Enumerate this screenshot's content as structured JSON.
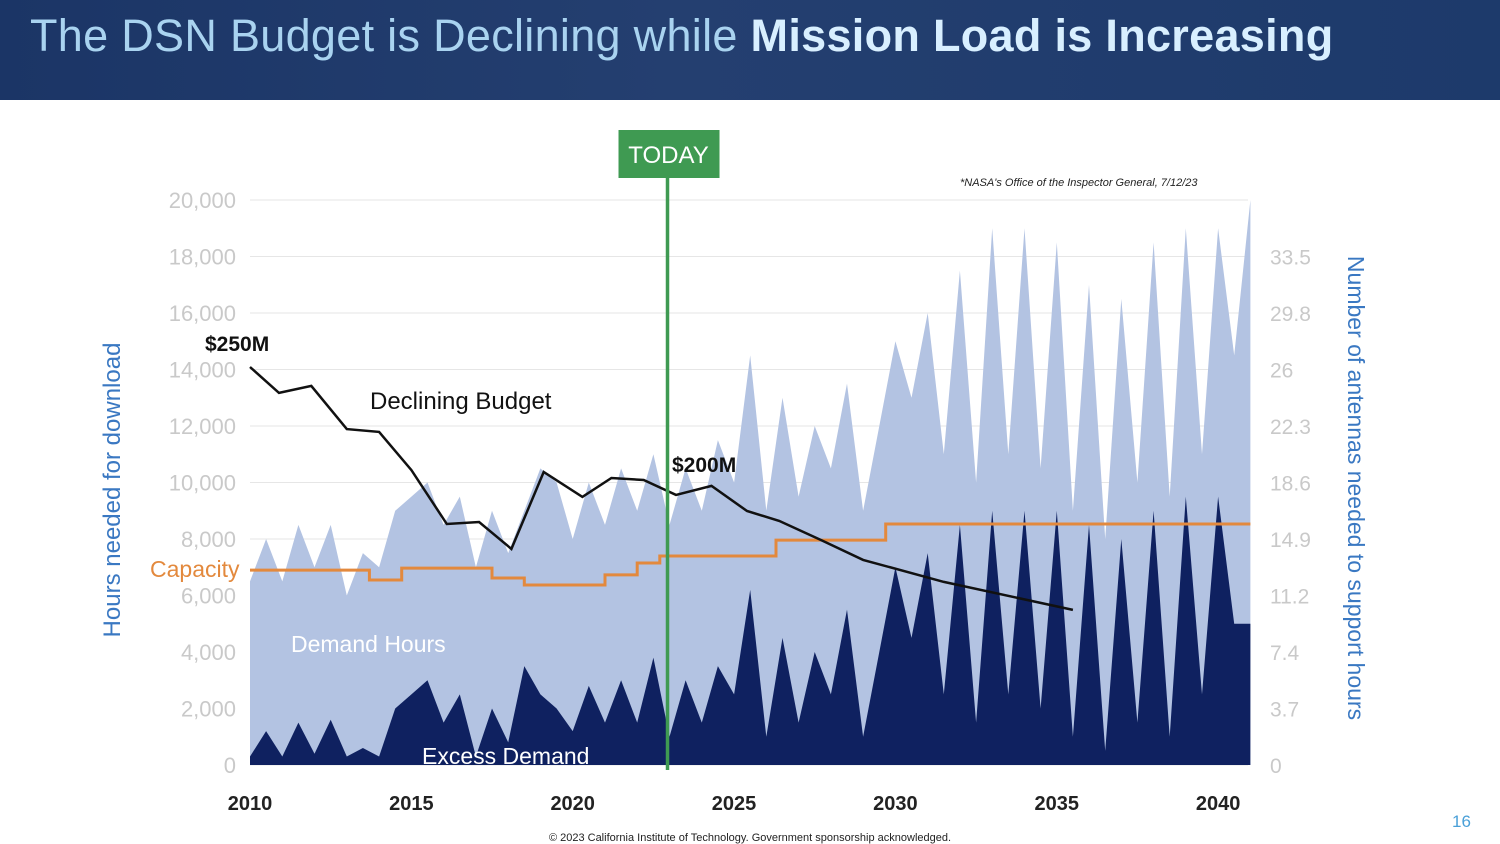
{
  "slide": {
    "title_regular": "The DSN Budget is Declining while ",
    "title_bold": "Mission Load is Increasing",
    "footnote": "*NASA's Office of the Inspector General, 7/12/23",
    "copyright": "© 2023 California Institute of Technology. Government sponsorship acknowledged.",
    "page_number": "16"
  },
  "chart_data": {
    "type": "area",
    "ylabel": "Hours needed for download",
    "y2label": "Number of antennas needed to support hours",
    "xlim": [
      2010,
      2041
    ],
    "ylim": [
      0,
      20000
    ],
    "x_ticks": [
      "2010",
      "2015",
      "2020",
      "2025",
      "2030",
      "2035",
      "2040"
    ],
    "y_ticks": [
      "0",
      "2,000",
      "4,000",
      "6,000",
      "8,000",
      "10,000",
      "12,000",
      "14,000",
      "16,000",
      "18,000",
      "20,000"
    ],
    "y2_ticks": [
      "0",
      "3.7",
      "7.4",
      "11.2",
      "14.9",
      "18.6",
      "22.3",
      "26",
      "29.8",
      "33.5"
    ],
    "grid": true,
    "today_year": 2023,
    "today_label": "TODAY",
    "colors": {
      "demand": "#b3c3e2",
      "excess": "#0f2160",
      "capacity": "#e3893d",
      "budget": "#111111",
      "today": "#3f9a52",
      "axis_label": "#3a78c2"
    },
    "annotations": {
      "budget_start": "$250M",
      "budget_today": "$200M",
      "budget_label": "Declining Budget",
      "capacity_label": "Capacity",
      "demand_label": "Demand Hours",
      "excess_label": "Excess Demand"
    },
    "x_step_years": 0.5,
    "demand_hours": [
      6500,
      8000,
      6500,
      8500,
      7000,
      8500,
      6000,
      7500,
      7000,
      9000,
      9500,
      10000,
      8500,
      9500,
      7000,
      9000,
      7500,
      9000,
      10500,
      10000,
      8000,
      10000,
      8500,
      10500,
      9000,
      11000,
      8500,
      10500,
      9000,
      11500,
      10000,
      14500,
      9000,
      13000,
      9500,
      12000,
      10500,
      13500,
      9000,
      12000,
      15000,
      13000,
      16000,
      11000,
      17500,
      10000,
      19000,
      11000,
      19000,
      10500,
      18500,
      9000,
      17000,
      8000,
      16500,
      10000,
      18500,
      9500,
      19000,
      11000,
      19000,
      14500,
      20000
    ],
    "excess_demand": [
      300,
      1200,
      300,
      1500,
      400,
      1600,
      300,
      600,
      300,
      2000,
      2500,
      3000,
      1500,
      2500,
      300,
      2000,
      800,
      3500,
      2500,
      2000,
      1200,
      2800,
      1500,
      3000,
      1500,
      3800,
      1000,
      3000,
      1500,
      3500,
      2500,
      6200,
      1000,
      4500,
      1500,
      4000,
      2500,
      5500,
      1000,
      4000,
      7000,
      4500,
      7500,
      2500,
      8500,
      1500,
      9000,
      2500,
      9000,
      2000,
      9000,
      1000,
      8500,
      500,
      8000,
      1500,
      9000,
      1000,
      9500,
      2500,
      9500,
      5000,
      5000
    ],
    "capacity_steps": [
      [
        2010,
        2013.7,
        6900
      ],
      [
        2013.7,
        2014.7,
        6550
      ],
      [
        2014.7,
        2017.5,
        6970
      ],
      [
        2017.5,
        2018.5,
        6620
      ],
      [
        2018.5,
        2021,
        6370
      ],
      [
        2021,
        2022,
        6730
      ],
      [
        2022,
        2022.7,
        7150
      ],
      [
        2022.7,
        2026.3,
        7400
      ],
      [
        2026.3,
        2029.7,
        7960
      ],
      [
        2029.7,
        2041,
        8530
      ]
    ],
    "budget_line": [
      [
        2010,
        14090
      ],
      [
        2010.9,
        13170
      ],
      [
        2011.9,
        13420
      ],
      [
        2013,
        11890
      ],
      [
        2014,
        11790
      ],
      [
        2015,
        10440
      ],
      [
        2016.1,
        8530
      ],
      [
        2017.1,
        8600
      ],
      [
        2018.1,
        7650
      ],
      [
        2019.1,
        10370
      ],
      [
        2020.3,
        9490
      ],
      [
        2021.2,
        10160
      ],
      [
        2022.2,
        10090
      ],
      [
        2023.2,
        9560
      ],
      [
        2024.3,
        9880
      ],
      [
        2025.4,
        8990
      ],
      [
        2026.4,
        8640
      ],
      [
        2027.7,
        7960
      ],
      [
        2029,
        7260
      ],
      [
        2031.5,
        6480
      ],
      [
        2035.5,
        5490
      ]
    ]
  }
}
